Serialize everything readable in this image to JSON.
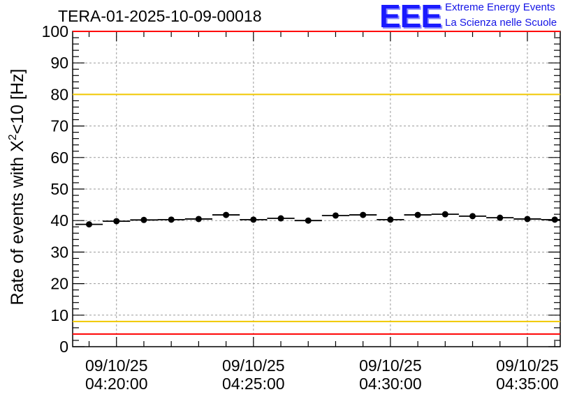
{
  "header": {
    "run_title": "TERA-01-2025-10-09-00018",
    "logo_text": "EEE",
    "logo_line1": "Extreme Energy Events",
    "logo_line2": "La Scienza nelle Scuole"
  },
  "colors": {
    "axis": "#000000",
    "grid": "#9a9a9a",
    "points": "#000000",
    "red_limit": "#ff0000",
    "yellow_limit": "#f0c800",
    "logo": "#1a1aff"
  },
  "chart_data": {
    "type": "scatter",
    "title": "TERA-01-2025-10-09-00018",
    "xlabel": "",
    "ylabel_main": "Rate of events with X",
    "ylabel_sup": "2",
    "ylabel_tail": "<10 [Hz]",
    "ylim": [
      0,
      100
    ],
    "xlim_minutes": [
      -1.6,
      16.2
    ],
    "y_ticks": [
      "0",
      "10",
      "20",
      "30",
      "40",
      "50",
      "60",
      "70",
      "80",
      "90",
      "100"
    ],
    "x_tick_minutes": [
      0,
      5,
      10,
      15
    ],
    "x_tick_dates": [
      "09/10/25",
      "09/10/25",
      "09/10/25",
      "09/10/25"
    ],
    "x_tick_times": [
      "04:20:00",
      "04:25:00",
      "04:30:00",
      "04:35:00"
    ],
    "grid": true,
    "bin_halfwidth_minutes": 0.5,
    "series": [
      {
        "name": "rate",
        "x_minutes": [
          -1,
          0,
          1,
          2,
          3,
          4,
          5,
          6,
          7,
          8,
          9,
          10,
          11,
          12,
          13,
          14,
          15,
          16
        ],
        "values": [
          38.8,
          39.8,
          40.2,
          40.3,
          40.5,
          41.8,
          40.3,
          40.7,
          40.0,
          41.6,
          41.8,
          40.3,
          41.8,
          42.0,
          41.4,
          40.9,
          40.5,
          40.3
        ]
      }
    ],
    "reference_lines": [
      {
        "name": "upper red limit",
        "y": 100,
        "color": "red"
      },
      {
        "name": "upper yellow limit",
        "y": 80,
        "color": "yellow"
      },
      {
        "name": "lower yellow limit",
        "y": 8,
        "color": "yellow"
      },
      {
        "name": "lower red limit",
        "y": 4,
        "color": "red"
      }
    ]
  }
}
